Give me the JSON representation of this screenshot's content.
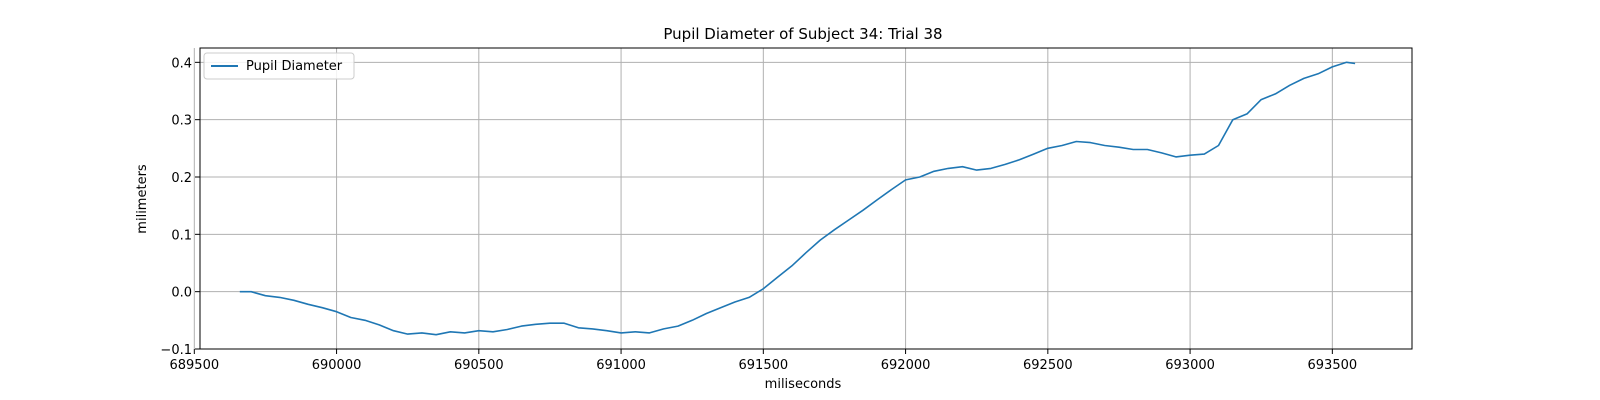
{
  "chart_data": {
    "type": "line",
    "title": "Pupil Diameter of Subject 34: Trial 38",
    "xlabel": "miliseconds",
    "ylabel": "milimeters",
    "xlim": [
      689520,
      693780
    ],
    "ylim": [
      -0.1,
      0.425
    ],
    "xticks": [
      689500,
      690000,
      690500,
      691000,
      691500,
      692000,
      692500,
      693000,
      693500
    ],
    "xtick_labels": [
      "689500",
      "690000",
      "690500",
      "691000",
      "691500",
      "692000",
      "692500",
      "693000",
      "693500"
    ],
    "yticks": [
      -0.1,
      0.0,
      0.1,
      0.2,
      0.3,
      0.4
    ],
    "ytick_labels": [
      "−0.1",
      "0.0",
      "0.1",
      "0.2",
      "0.3",
      "0.4"
    ],
    "grid": true,
    "legend": {
      "position": "top-left",
      "entries": [
        "Pupil Diameter"
      ]
    },
    "line_color": "#1f77b4",
    "series": [
      {
        "name": "Pupil Diameter",
        "x": [
          689660,
          689700,
          689750,
          689800,
          689850,
          689900,
          689950,
          690000,
          690050,
          690100,
          690150,
          690200,
          690250,
          690300,
          690350,
          690400,
          690450,
          690500,
          690550,
          690600,
          690650,
          690700,
          690750,
          690800,
          690850,
          690900,
          690950,
          691000,
          691050,
          691100,
          691150,
          691200,
          691250,
          691300,
          691350,
          691400,
          691450,
          691500,
          691550,
          691600,
          691650,
          691700,
          691750,
          691800,
          691850,
          691900,
          691950,
          692000,
          692050,
          692100,
          692150,
          692200,
          692250,
          692300,
          692350,
          692400,
          692450,
          692500,
          692550,
          692600,
          692650,
          692700,
          692750,
          692800,
          692850,
          692900,
          692950,
          693000,
          693050,
          693100,
          693150,
          693200,
          693250,
          693300,
          693350,
          693400,
          693450,
          693500,
          693550,
          693580
        ],
        "values": [
          0.0,
          0.0,
          -0.007,
          -0.01,
          -0.015,
          -0.022,
          -0.028,
          -0.035,
          -0.045,
          -0.05,
          -0.058,
          -0.068,
          -0.074,
          -0.072,
          -0.075,
          -0.07,
          -0.072,
          -0.068,
          -0.07,
          -0.066,
          -0.06,
          -0.057,
          -0.055,
          -0.055,
          -0.063,
          -0.065,
          -0.068,
          -0.072,
          -0.07,
          -0.072,
          -0.065,
          -0.06,
          -0.05,
          -0.038,
          -0.028,
          -0.018,
          -0.01,
          0.005,
          0.025,
          0.045,
          0.068,
          0.09,
          0.108,
          0.125,
          0.142,
          0.16,
          0.178,
          0.195,
          0.2,
          0.21,
          0.215,
          0.218,
          0.212,
          0.215,
          0.222,
          0.23,
          0.24,
          0.25,
          0.255,
          0.262,
          0.26,
          0.255,
          0.252,
          0.248,
          0.248,
          0.242,
          0.235,
          0.238,
          0.24,
          0.255,
          0.3,
          0.31,
          0.335,
          0.345,
          0.36,
          0.372,
          0.38,
          0.392,
          0.4,
          0.398
        ]
      }
    ]
  }
}
